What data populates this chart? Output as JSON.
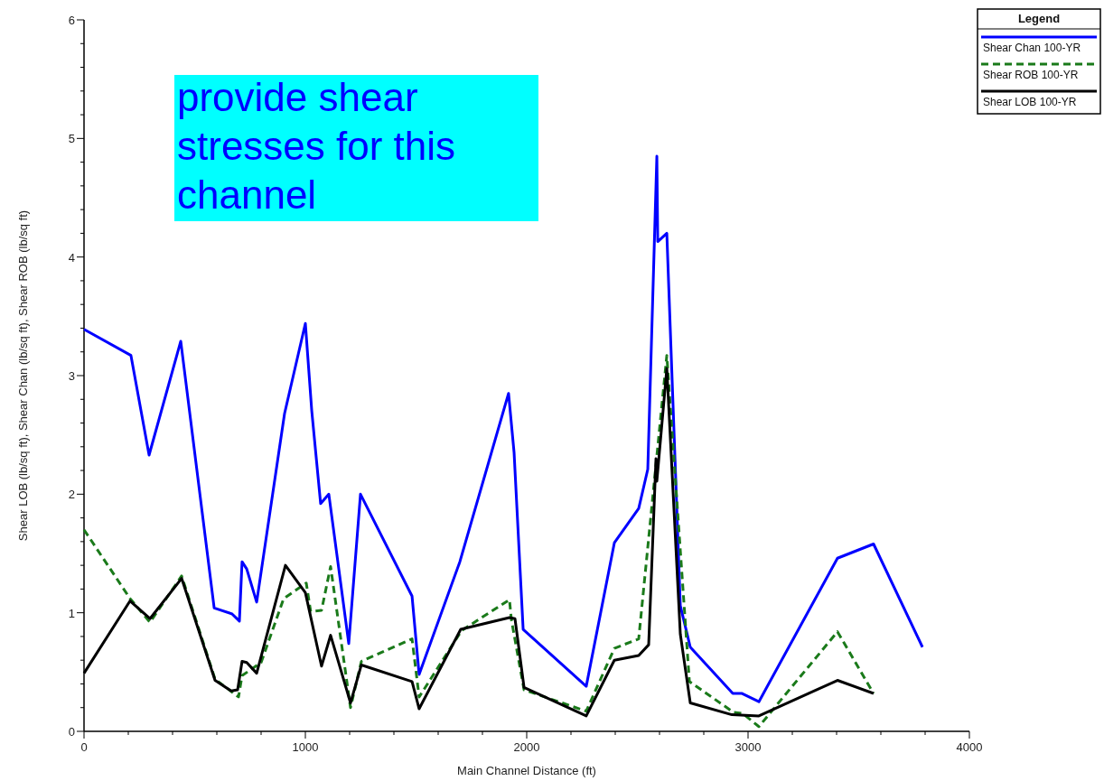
{
  "chart_data": {
    "type": "line",
    "xlabel": "Main Channel Distance (ft)",
    "ylabel": "Shear LOB (lb/sq ft), Shear Chan (lb/sq ft), Shear ROB (lb/sq ft)",
    "legend_title": "Legend",
    "legend": "top right",
    "grid": false,
    "marker": "none",
    "annotations": [
      "provide shear stresses for this channel"
    ],
    "xlim": [
      0,
      4000
    ],
    "ylim": [
      0,
      6
    ],
    "xticks": [
      0,
      {
        "value": 200,
        "label": null
      },
      {
        "value": 400,
        "label": null
      },
      {
        "value": 600,
        "label": null
      },
      {
        "value": 800,
        "label": null
      },
      1000,
      {
        "value": 1200,
        "label": null
      },
      {
        "value": 1400,
        "label": null
      },
      {
        "value": 1600,
        "label": null
      },
      {
        "value": 1800,
        "label": null
      },
      2000,
      {
        "value": 2200,
        "label": null
      },
      {
        "value": 2400,
        "label": null
      },
      {
        "value": 2600,
        "label": null
      },
      {
        "value": 2800,
        "label": null
      },
      3000,
      {
        "value": 3200,
        "label": null
      },
      {
        "value": 3400,
        "label": null
      },
      {
        "value": 3600,
        "label": null
      },
      {
        "value": 3800,
        "label": null
      },
      4000
    ],
    "yticks": [
      0,
      {
        "value": 0.2,
        "label": null
      },
      {
        "value": 0.4,
        "label": null
      },
      {
        "value": 0.6,
        "label": null
      },
      {
        "value": 0.8,
        "label": null
      },
      1,
      {
        "value": 1.2,
        "label": null
      },
      {
        "value": 1.4,
        "label": null
      },
      {
        "value": 1.6,
        "label": null
      },
      {
        "value": 1.8,
        "label": null
      },
      2,
      {
        "value": 2.2,
        "label": null
      },
      {
        "value": 2.4,
        "label": null
      },
      {
        "value": 2.6,
        "label": null
      },
      {
        "value": 2.8,
        "label": null
      },
      3,
      {
        "value": 3.2,
        "label": null
      },
      {
        "value": 3.4,
        "label": null
      },
      {
        "value": 3.6,
        "label": null
      },
      {
        "value": 3.8,
        "label": null
      },
      4,
      {
        "value": 4.2,
        "label": null
      },
      {
        "value": 4.4,
        "label": null
      },
      {
        "value": 4.6,
        "label": null
      },
      {
        "value": 4.8,
        "label": null
      },
      5,
      {
        "value": 5.2,
        "label": null
      },
      {
        "value": 5.4,
        "label": null
      },
      {
        "value": 5.6,
        "label": null
      },
      {
        "value": 5.8,
        "label": null
      },
      6
    ],
    "series": [
      {
        "name": "Shear Chan 100-YR",
        "color": "#0000ff",
        "line_style": "solid",
        "x": [
          0,
          212,
          294,
          437,
          588,
          669,
          702,
          714,
          735,
          780,
          906,
          1000,
          1029,
          1069,
          1106,
          1196,
          1249,
          1482,
          1514,
          1698,
          1918,
          1943,
          1984,
          2269,
          2396,
          2506,
          2547,
          2588,
          2592,
          2633,
          2694,
          2739,
          2931,
          2971,
          3049,
          3404,
          3567,
          3788
        ],
        "values": [
          3.39,
          3.17,
          2.33,
          3.29,
          1.04,
          0.99,
          0.93,
          1.43,
          1.37,
          1.09,
          2.68,
          3.44,
          2.7,
          1.92,
          2.0,
          0.74,
          2.0,
          1.14,
          0.48,
          1.43,
          2.85,
          2.35,
          0.86,
          0.38,
          1.59,
          1.88,
          2.21,
          4.85,
          4.13,
          4.2,
          1.06,
          0.71,
          0.32,
          0.32,
          0.25,
          1.46,
          1.58,
          0.71
        ]
      },
      {
        "name": "Shear ROB 100-YR",
        "color": "#1a7a1a",
        "line_style": "dashed",
        "x": [
          0,
          208,
          298,
          441,
          592,
          698,
          714,
          800,
          902,
          1004,
          1024,
          1073,
          1114,
          1204,
          1253,
          1482,
          1514,
          1706,
          1922,
          1931,
          1988,
          2269,
          2396,
          2506,
          2633,
          2735,
          2935,
          2976,
          3049,
          3404,
          3567
        ],
        "values": [
          1.7,
          1.12,
          0.92,
          1.31,
          0.44,
          0.29,
          0.47,
          0.58,
          1.12,
          1.25,
          1.01,
          1.02,
          1.39,
          0.2,
          0.59,
          0.78,
          0.29,
          0.85,
          1.11,
          0.94,
          0.35,
          0.17,
          0.7,
          0.78,
          3.17,
          0.42,
          0.16,
          0.15,
          0.04,
          0.84,
          0.32
        ]
      },
      {
        "name": "Shear LOB 100-YR",
        "color": "#000000",
        "line_style": "solid",
        "x": [
          0,
          208,
          298,
          441,
          592,
          665,
          694,
          714,
          735,
          780,
          910,
          1000,
          1073,
          1114,
          1204,
          1253,
          1482,
          1514,
          1702,
          1922,
          1947,
          1988,
          2269,
          2396,
          2506,
          2551,
          2584,
          2588,
          2633,
          2694,
          2739,
          2927,
          3049,
          3404,
          3567
        ],
        "values": [
          0.49,
          1.1,
          0.95,
          1.29,
          0.43,
          0.34,
          0.35,
          0.59,
          0.58,
          0.49,
          1.4,
          1.17,
          0.55,
          0.81,
          0.24,
          0.56,
          0.42,
          0.19,
          0.86,
          0.96,
          0.95,
          0.37,
          0.13,
          0.6,
          0.64,
          0.73,
          2.3,
          2.11,
          3.06,
          0.82,
          0.24,
          0.14,
          0.13,
          0.43,
          0.32
        ]
      }
    ]
  }
}
